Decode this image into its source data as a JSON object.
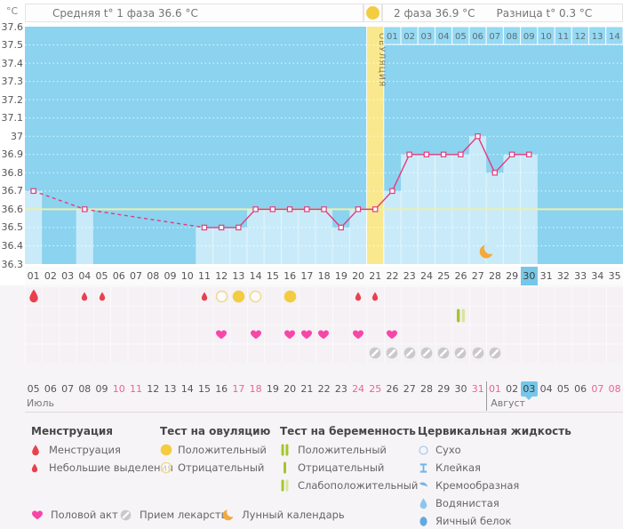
{
  "header": {
    "unit": "°C",
    "phase1": "Средняя t° 1 фаза 36.6 °C",
    "phase2": "2 фаза 36.9 °C",
    "difference": "Разница t° 0.3 °C"
  },
  "chart_data": {
    "type": "line",
    "title": "Basal body temperature cycle chart",
    "ylabel": "°C",
    "ylim": [
      36.3,
      37.6
    ],
    "ytick_step": 0.1,
    "total_days": 35,
    "coverline": 36.6,
    "phase1_avg": 36.6,
    "phase2_avg": 36.9,
    "phase_difference": 0.3,
    "ovulation_day": 21,
    "ovulation_label": "ОВУЛЯЦИЯ",
    "phase2_day_labels": [
      "01",
      "02",
      "03",
      "04",
      "05",
      "06",
      "07",
      "08",
      "09",
      "10",
      "11",
      "12",
      "13",
      "14"
    ],
    "points": [
      {
        "day": 1,
        "temp": 36.7
      },
      {
        "day": 4,
        "temp": 36.6
      },
      {
        "day": 11,
        "temp": 36.5
      },
      {
        "day": 12,
        "temp": 36.5
      },
      {
        "day": 13,
        "temp": 36.5
      },
      {
        "day": 14,
        "temp": 36.6
      },
      {
        "day": 15,
        "temp": 36.6
      },
      {
        "day": 16,
        "temp": 36.6
      },
      {
        "day": 17,
        "temp": 36.6
      },
      {
        "day": 18,
        "temp": 36.6
      },
      {
        "day": 19,
        "temp": 36.5
      },
      {
        "day": 20,
        "temp": 36.6
      },
      {
        "day": 21,
        "temp": 36.6
      },
      {
        "day": 22,
        "temp": 36.7
      },
      {
        "day": 23,
        "temp": 36.9
      },
      {
        "day": 24,
        "temp": 36.9
      },
      {
        "day": 25,
        "temp": 36.9
      },
      {
        "day": 26,
        "temp": 36.9
      },
      {
        "day": 27,
        "temp": 37.0
      },
      {
        "day": 28,
        "temp": 36.8
      },
      {
        "day": 29,
        "temp": 36.9
      },
      {
        "day": 30,
        "temp": 36.9
      }
    ],
    "lunar_day": 28
  },
  "cycle_days": {
    "labels": [
      "01",
      "02",
      "03",
      "04",
      "05",
      "06",
      "07",
      "08",
      "09",
      "10",
      "11",
      "12",
      "13",
      "14",
      "15",
      "16",
      "17",
      "18",
      "19",
      "20",
      "21",
      "22",
      "23",
      "24",
      "25",
      "26",
      "27",
      "28",
      "29",
      "30",
      "31",
      "32",
      "33",
      "34",
      "35"
    ],
    "highlighted_day": 30
  },
  "symptoms": {
    "menstruation": [
      {
        "day": 1,
        "size": "large"
      },
      {
        "day": 4,
        "size": "small"
      },
      {
        "day": 5,
        "size": "small"
      },
      {
        "day": 11,
        "size": "small"
      },
      {
        "day": 20,
        "size": "small"
      },
      {
        "day": 21,
        "size": "small"
      }
    ],
    "ovulation_tests": [
      {
        "day": 12,
        "result": "negative"
      },
      {
        "day": 13,
        "result": "positive"
      },
      {
        "day": 14,
        "result": "negative"
      },
      {
        "day": 16,
        "result": "positive"
      }
    ],
    "pregnancy_tests": [
      {
        "day": 26,
        "result": "weak_positive"
      }
    ],
    "intercourse_days": [
      12,
      14,
      16,
      17,
      18,
      20,
      22
    ],
    "medication_days": [
      21,
      22,
      23,
      24,
      25,
      26,
      27,
      28
    ]
  },
  "calendar": {
    "dates": [
      "05",
      "06",
      "07",
      "08",
      "09",
      "10",
      "11",
      "12",
      "13",
      "14",
      "15",
      "16",
      "17",
      "18",
      "19",
      "20",
      "21",
      "22",
      "23",
      "24",
      "25",
      "26",
      "27",
      "28",
      "29",
      "30",
      "31",
      "01",
      "02",
      "03",
      "04",
      "05",
      "06",
      "07",
      "08"
    ],
    "weekend_indices": [
      5,
      6,
      12,
      13,
      19,
      20,
      26,
      27,
      33,
      34
    ],
    "highlighted_index": 29,
    "month_break_index": 27,
    "months": [
      {
        "name": "Июль"
      },
      {
        "name": "Август"
      }
    ]
  },
  "legend": {
    "columns": [
      {
        "title": "Менструация",
        "items": [
          {
            "icon": "menstruation-large",
            "label": "Менструация"
          },
          {
            "icon": "menstruation-small",
            "label": "Небольшие выделения"
          }
        ]
      },
      {
        "title": "Тест на овуляцию",
        "items": [
          {
            "icon": "ovulation-positive",
            "label": "Положительный"
          },
          {
            "icon": "ovulation-negative",
            "label": "Отрицательный"
          }
        ]
      },
      {
        "title": "Тест на беременность",
        "items": [
          {
            "icon": "pregnancy-positive",
            "label": "Положительный"
          },
          {
            "icon": "pregnancy-negative",
            "label": "Отрицательный"
          },
          {
            "icon": "pregnancy-weak",
            "label": "Слабоположительный"
          }
        ]
      },
      {
        "title": "Цервикальная жидкость",
        "items": [
          {
            "icon": "cervical-dry",
            "label": "Сухо"
          },
          {
            "icon": "cervical-sticky",
            "label": "Клейкая"
          },
          {
            "icon": "cervical-creamy",
            "label": "Кремообразная"
          },
          {
            "icon": "cervical-watery",
            "label": "Водянистая"
          },
          {
            "icon": "cervical-eggwhite",
            "label": "Яичный белок"
          }
        ]
      }
    ],
    "bottom": [
      {
        "icon": "intercourse",
        "label": "Половой акт"
      },
      {
        "icon": "medication",
        "label": "Прием лекарств"
      },
      {
        "icon": "lunar",
        "label": "Лунный календарь"
      }
    ]
  },
  "colors": {
    "chart_background": "#8BD3EF",
    "measured_band": "#C9EBF9",
    "ovulation_band": "#F9E88D",
    "coverline": "#EDEFA9",
    "temperature_line": "#E23C7E",
    "current_day_highlight": "#76C7E7",
    "menstruation": "#E8414E",
    "ovulation_test": "#F3CC3F",
    "pregnancy_test_positive": "#A4C62A",
    "pregnancy_test_pale": "#D9E4A0",
    "intercourse": "#F846A8",
    "medication": "#C9C9C9",
    "moon": "#F4A93B",
    "cervical_fluid": "#6FB5E8",
    "weekend_date": "#ED6394"
  }
}
